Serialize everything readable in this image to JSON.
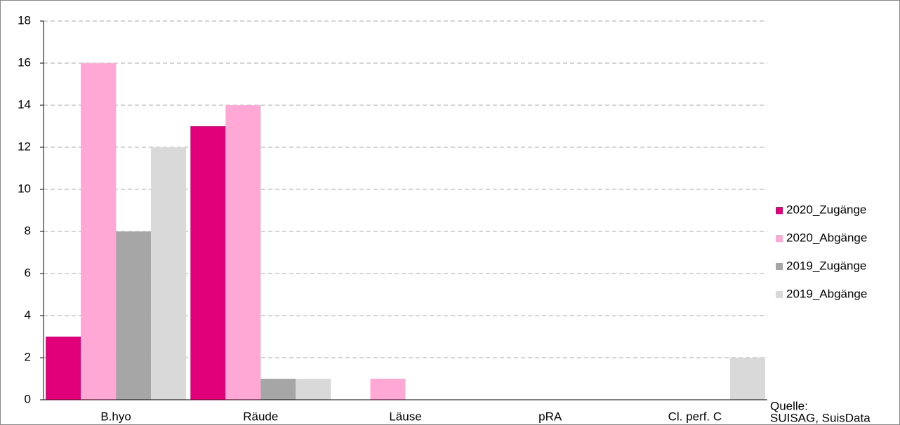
{
  "chart_data": {
    "type": "bar",
    "categories": [
      "B.hyo",
      "Räude",
      "Läuse",
      "pRA",
      "Cl. perf. C"
    ],
    "series": [
      {
        "name": "2020_Zugänge",
        "color": "#e2007a",
        "values": [
          3,
          13,
          0,
          0,
          0
        ]
      },
      {
        "name": "2020_Abgänge",
        "color": "#ffa8d6",
        "values": [
          16,
          14,
          1,
          0,
          0
        ]
      },
      {
        "name": "2019_Zugänge",
        "color": "#a6a6a6",
        "values": [
          8,
          1,
          0,
          0,
          0
        ]
      },
      {
        "name": "2019_Abgänge",
        "color": "#d9d9d9",
        "values": [
          12,
          1,
          0,
          0,
          2
        ]
      }
    ],
    "ylim": [
      0,
      18
    ],
    "yticks": [
      0,
      2,
      4,
      6,
      8,
      10,
      12,
      14,
      16,
      18
    ],
    "grid": true,
    "legend": "right",
    "annotation": [
      "Quelle:",
      "SUISAG, SuisData"
    ]
  }
}
